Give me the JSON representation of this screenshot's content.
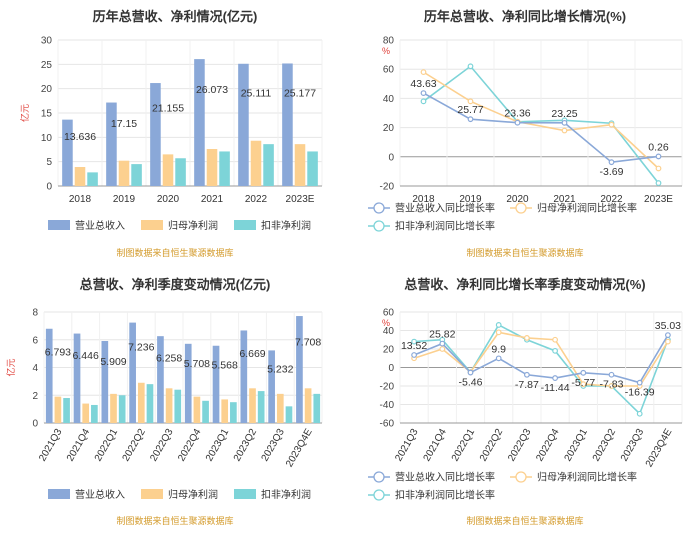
{
  "chart_data": [
    {
      "type": "bar",
      "title": "历年总营收、净利情况(亿元)",
      "ylabel": "亿元",
      "ylim": [
        0,
        30
      ],
      "yticks": [
        0,
        5,
        10,
        15,
        20,
        25,
        30
      ],
      "categories": [
        "2018",
        "2019",
        "2020",
        "2021",
        "2022",
        "2023E"
      ],
      "series": [
        {
          "name": "营业总收入",
          "values": [
            13.636,
            17.15,
            21.155,
            26.073,
            25.111,
            25.177
          ],
          "color": "#8aa8d8"
        },
        {
          "name": "归母净利润",
          "values": [
            3.9,
            5.2,
            6.5,
            7.6,
            9.3,
            8.6
          ],
          "color": "#fcd08f"
        },
        {
          "name": "扣非净利润",
          "values": [
            2.8,
            4.5,
            5.7,
            7.1,
            8.6,
            7.1
          ],
          "color": "#7dd4d8"
        }
      ],
      "data_labels": [
        "13.636",
        "17.15",
        "21.155",
        "26.073",
        "25.111",
        "25.177"
      ],
      "source": "制图数据来自恒生聚源数据库"
    },
    {
      "type": "line",
      "title": "历年总营收、净利同比增长情况(%)",
      "ylabel": "%",
      "ylim": [
        -20,
        80
      ],
      "yticks": [
        -20,
        0,
        20,
        40,
        60,
        80
      ],
      "categories": [
        "2018",
        "2019",
        "2020",
        "2021",
        "2022",
        "2023E"
      ],
      "series": [
        {
          "name": "营业总收入同比增长率",
          "values": [
            43.63,
            25.77,
            23.36,
            23.25,
            -3.69,
            0.26
          ],
          "color": "#8aa8d8"
        },
        {
          "name": "归母净利润同比增长率",
          "values": [
            58,
            38,
            24,
            18,
            22,
            -8
          ],
          "color": "#fcd08f"
        },
        {
          "name": "扣非净利润同比增长率",
          "values": [
            38,
            62,
            24,
            25,
            23,
            -18
          ],
          "color": "#7dd4d8"
        }
      ],
      "data_labels": [
        "43.63",
        "25.77",
        "23.36",
        "23.25",
        "-3.69",
        "0.26"
      ],
      "source": "制图数据来自恒生聚源数据库"
    },
    {
      "type": "bar",
      "title": "总营收、净利季度变动情况(亿元)",
      "ylabel": "亿元",
      "ylim": [
        0,
        8
      ],
      "yticks": [
        0,
        2,
        4,
        6,
        8
      ],
      "categories": [
        "2021Q3",
        "2021Q4",
        "2022Q1",
        "2022Q2",
        "2022Q3",
        "2022Q4",
        "2023Q1",
        "2023Q2",
        "2023Q3",
        "2023Q4E"
      ],
      "series": [
        {
          "name": "营业总收入",
          "values": [
            6.793,
            6.446,
            5.909,
            7.236,
            6.258,
            5.708,
            5.568,
            6.669,
            5.232,
            7.708
          ],
          "color": "#8aa8d8"
        },
        {
          "name": "归母净利润",
          "values": [
            1.9,
            1.4,
            2.1,
            2.9,
            2.5,
            1.9,
            1.7,
            2.5,
            2.1,
            2.5
          ],
          "color": "#fcd08f"
        },
        {
          "name": "扣非净利润",
          "values": [
            1.8,
            1.3,
            2.0,
            2.8,
            2.4,
            1.6,
            1.5,
            2.3,
            1.2,
            2.1
          ],
          "color": "#7dd4d8"
        }
      ],
      "data_labels": [
        "6.793",
        "6.446",
        "5.909",
        "7.236",
        "6.258",
        "5.708",
        "5.568",
        "6.669",
        "5.232",
        "7.708"
      ],
      "source": "制图数据来自恒生聚源数据库"
    },
    {
      "type": "line",
      "title": "总营收、净利同比增长率季度变动情况(%)",
      "ylabel": "%",
      "ylim": [
        -60,
        60
      ],
      "yticks": [
        -60,
        -40,
        -20,
        0,
        20,
        40,
        60
      ],
      "categories": [
        "2021Q3",
        "2021Q4",
        "2022Q1",
        "2022Q2",
        "2022Q3",
        "2022Q4",
        "2023Q1",
        "2023Q2",
        "2023Q3",
        "2023Q4E"
      ],
      "series": [
        {
          "name": "营业总收入同比增长率",
          "values": [
            13.52,
            25.82,
            -5.46,
            9.9,
            -7.87,
            -11.44,
            -5.77,
            -7.83,
            -16.39,
            35.03
          ],
          "color": "#8aa8d8"
        },
        {
          "name": "归母净利润同比增长率",
          "values": [
            10,
            20,
            -5,
            38,
            32,
            30,
            -18,
            -20,
            -20,
            28
          ],
          "color": "#fcd08f"
        },
        {
          "name": "扣非净利润同比增长率",
          "values": [
            28,
            30,
            -5,
            46,
            30,
            18,
            -20,
            -20,
            -50,
            30
          ],
          "color": "#7dd4d8"
        }
      ],
      "data_labels": [
        "13.52",
        "25.82",
        "-5.46",
        "9.9",
        "-7.87",
        "-11.44",
        "-5.77",
        "-7.83",
        "-16.39",
        "35.03"
      ],
      "source": "制图数据来自恒生聚源数据库"
    }
  ]
}
